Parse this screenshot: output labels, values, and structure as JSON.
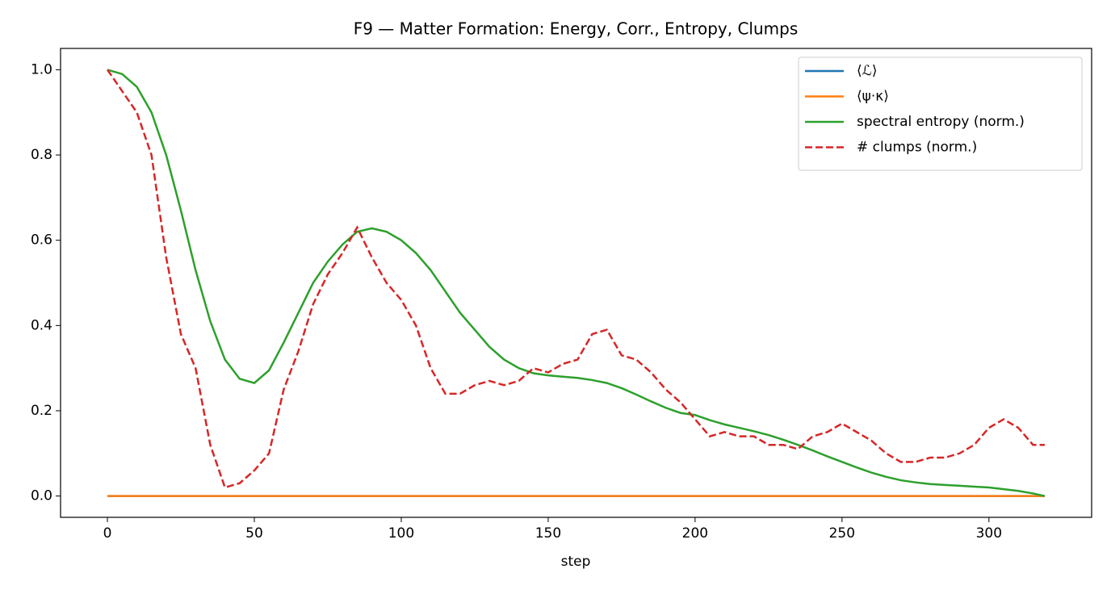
{
  "chart_data": {
    "type": "line",
    "title": "F9 — Matter Formation: Energy, Corr., Entropy, Clumps",
    "xlabel": "step",
    "x": [
      0,
      5,
      10,
      15,
      20,
      25,
      30,
      35,
      40,
      45,
      50,
      55,
      60,
      65,
      70,
      75,
      80,
      85,
      90,
      95,
      100,
      105,
      110,
      115,
      120,
      125,
      130,
      135,
      140,
      145,
      150,
      155,
      160,
      165,
      170,
      175,
      180,
      185,
      190,
      195,
      200,
      205,
      210,
      215,
      220,
      225,
      230,
      235,
      240,
      245,
      250,
      255,
      260,
      265,
      270,
      275,
      280,
      285,
      290,
      295,
      300,
      305,
      310,
      315,
      319
    ],
    "series": [
      {
        "name": "⟨ℒ⟩",
        "color": "#1f77b4",
        "linestyle": "solid",
        "values": [
          0,
          0,
          0,
          0,
          0,
          0,
          0,
          0,
          0,
          0,
          0,
          0,
          0,
          0,
          0,
          0,
          0,
          0,
          0,
          0,
          0,
          0,
          0,
          0,
          0,
          0,
          0,
          0,
          0,
          0,
          0,
          0,
          0,
          0,
          0,
          0,
          0,
          0,
          0,
          0,
          0,
          0,
          0,
          0,
          0,
          0,
          0,
          0,
          0,
          0,
          0,
          0,
          0,
          0,
          0,
          0,
          0,
          0,
          0,
          0,
          0,
          0,
          0,
          0,
          0
        ]
      },
      {
        "name": "⟨ψ·κ⟩",
        "color": "#ff7f0e",
        "linestyle": "solid",
        "values": [
          0,
          0,
          0,
          0,
          0,
          0,
          0,
          0,
          0,
          0,
          0,
          0,
          0,
          0,
          0,
          0,
          0,
          0,
          0,
          0,
          0,
          0,
          0,
          0,
          0,
          0,
          0,
          0,
          0,
          0,
          0,
          0,
          0,
          0,
          0,
          0,
          0,
          0,
          0,
          0,
          0,
          0,
          0,
          0,
          0,
          0,
          0,
          0,
          0,
          0,
          0,
          0,
          0,
          0,
          0,
          0,
          0,
          0,
          0,
          0,
          0,
          0,
          0,
          0,
          0
        ]
      },
      {
        "name": "spectral entropy (norm.)",
        "color": "#2ca02c",
        "linestyle": "solid",
        "values": [
          1.0,
          0.99,
          0.96,
          0.9,
          0.8,
          0.67,
          0.53,
          0.41,
          0.32,
          0.275,
          0.265,
          0.295,
          0.36,
          0.43,
          0.5,
          0.55,
          0.59,
          0.62,
          0.628,
          0.62,
          0.6,
          0.57,
          0.53,
          0.48,
          0.43,
          0.39,
          0.35,
          0.32,
          0.3,
          0.288,
          0.283,
          0.28,
          0.277,
          0.272,
          0.265,
          0.253,
          0.238,
          0.222,
          0.207,
          0.195,
          0.19,
          0.178,
          0.168,
          0.16,
          0.152,
          0.143,
          0.132,
          0.12,
          0.107,
          0.093,
          0.08,
          0.067,
          0.055,
          0.045,
          0.037,
          0.032,
          0.028,
          0.026,
          0.024,
          0.022,
          0.02,
          0.016,
          0.012,
          0.006,
          0.0
        ]
      },
      {
        "name": "# clumps (norm.)",
        "color": "#d62728",
        "linestyle": "dashed",
        "values": [
          1.0,
          0.95,
          0.9,
          0.8,
          0.56,
          0.38,
          0.3,
          0.12,
          0.02,
          0.03,
          0.06,
          0.1,
          0.25,
          0.34,
          0.45,
          0.52,
          0.57,
          0.63,
          0.56,
          0.5,
          0.46,
          0.4,
          0.3,
          0.24,
          0.24,
          0.26,
          0.27,
          0.26,
          0.27,
          0.3,
          0.29,
          0.31,
          0.32,
          0.38,
          0.39,
          0.33,
          0.32,
          0.29,
          0.25,
          0.22,
          0.18,
          0.14,
          0.15,
          0.14,
          0.14,
          0.12,
          0.12,
          0.11,
          0.14,
          0.15,
          0.17,
          0.15,
          0.13,
          0.1,
          0.08,
          0.08,
          0.09,
          0.09,
          0.1,
          0.12,
          0.16,
          0.18,
          0.16,
          0.12,
          0.12
        ]
      }
    ],
    "xlim": [
      -15.95,
      334.95
    ],
    "ylim": [
      -0.05,
      1.05
    ],
    "xticks": [
      0,
      50,
      100,
      150,
      200,
      250,
      300
    ],
    "yticks": [
      {
        "value": 0,
        "label": "0.0"
      },
      {
        "value": 0.2,
        "label": "0.2"
      },
      {
        "value": 0.4,
        "label": "0.4"
      },
      {
        "value": 0.6,
        "label": "0.6"
      },
      {
        "value": 0.8,
        "label": "0.8"
      },
      {
        "value": 1.0,
        "label": "1.0"
      }
    ],
    "grid": false,
    "legend": "upper right"
  }
}
